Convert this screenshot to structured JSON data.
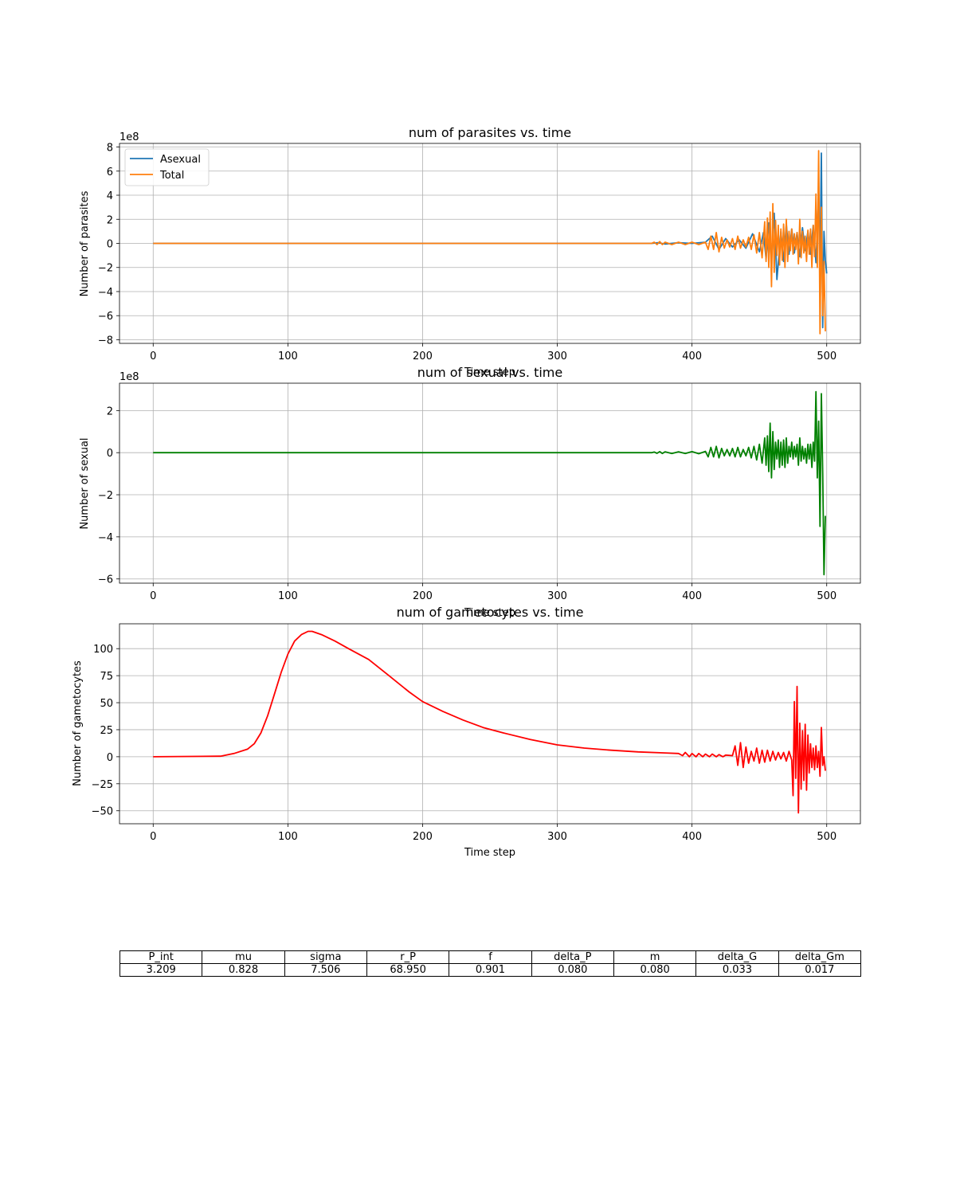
{
  "chart_data": [
    {
      "type": "line",
      "title": "num of parasites vs. time",
      "xlabel": "Time step",
      "ylabel": "Number of parasites",
      "offset_label": "1e8",
      "xlim": [
        -25,
        525
      ],
      "ylim": [
        -8.3,
        8.3
      ],
      "xticks": [
        0,
        100,
        200,
        300,
        400,
        500
      ],
      "yticks": [
        -8,
        -6,
        -4,
        -2,
        0,
        2,
        4,
        6,
        8
      ],
      "grid": true,
      "legend": "upper-left",
      "series": [
        {
          "name": "Asexual",
          "color": "#1f77b4",
          "x": [
            0,
            370,
            375,
            380,
            390,
            400,
            410,
            415,
            420,
            425,
            430,
            435,
            440,
            445,
            450,
            453,
            455,
            457,
            459,
            461,
            463,
            466,
            468,
            470,
            472,
            474,
            476,
            478,
            480,
            482,
            484,
            486,
            488,
            490,
            492,
            494,
            495,
            496,
            497,
            498,
            499,
            500
          ],
          "y": [
            0,
            0,
            0.05,
            -0.05,
            0.05,
            0,
            0.1,
            0.6,
            -0.5,
            0.4,
            -0.3,
            0.3,
            -0.4,
            0.8,
            -0.7,
            0.9,
            -1.3,
            1.7,
            -1.4,
            2.5,
            -3.0,
            1.0,
            -1.5,
            1.6,
            -0.9,
            1.2,
            -0.8,
            0.9,
            -1.1,
            1.3,
            -0.6,
            1.0,
            -0.9,
            1.5,
            -1.6,
            4.0,
            -2.0,
            7.5,
            -7.0,
            1.0,
            -1.4,
            -2.5
          ]
        },
        {
          "name": "Total",
          "color": "#ff7f0e",
          "x": [
            0,
            370,
            372,
            374,
            376,
            378,
            380,
            385,
            390,
            395,
            400,
            405,
            410,
            412,
            414,
            416,
            418,
            420,
            422,
            424,
            426,
            428,
            430,
            432,
            434,
            436,
            438,
            440,
            442,
            444,
            446,
            448,
            450,
            452,
            454,
            455,
            456,
            457,
            458,
            459,
            460,
            461,
            462,
            463,
            464,
            465,
            466,
            467,
            468,
            469,
            470,
            471,
            472,
            473,
            474,
            475,
            476,
            477,
            478,
            479,
            480,
            481,
            482,
            483,
            484,
            485,
            486,
            487,
            488,
            489,
            490,
            491,
            492,
            493,
            494,
            495,
            496,
            497,
            498,
            499
          ],
          "y": [
            0,
            0,
            0.1,
            -0.1,
            0.15,
            -0.1,
            0.1,
            -0.1,
            0.1,
            -0.1,
            0.1,
            -0.1,
            0.1,
            -0.5,
            0.6,
            -0.5,
            0.9,
            -0.7,
            0.5,
            -0.4,
            0.3,
            -0.3,
            0.4,
            -0.5,
            0.6,
            -0.4,
            0.3,
            -0.3,
            0.5,
            -0.5,
            0.7,
            -0.8,
            0.9,
            -1.2,
            1.8,
            -1.5,
            2.1,
            -2.0,
            2.6,
            -3.6,
            3.3,
            -2.4,
            1.9,
            -1.0,
            1.5,
            -1.8,
            1.2,
            -1.4,
            1.6,
            -2.0,
            2.0,
            -1.5,
            1.0,
            -0.6,
            1.2,
            -0.9,
            0.8,
            -0.5,
            0.9,
            -1.7,
            2.0,
            -1.2,
            1.0,
            -0.8,
            0.6,
            -1.5,
            1.1,
            -0.9,
            1.2,
            -2.0,
            1.5,
            -1.1,
            4.1,
            -2.0,
            7.7,
            -7.5,
            3.0,
            -6.0,
            -1.5,
            -7.3
          ]
        }
      ]
    },
    {
      "type": "line",
      "title": "num of sexual vs. time",
      "xlabel": "Time step",
      "ylabel": "Number of sexual",
      "offset_label": "1e8",
      "xlim": [
        -25,
        525
      ],
      "ylim": [
        -6.2,
        3.3
      ],
      "xticks": [
        0,
        100,
        200,
        300,
        400,
        500
      ],
      "yticks": [
        -6,
        -4,
        -2,
        0,
        2
      ],
      "grid": true,
      "series": [
        {
          "name": "",
          "color": "#008000",
          "x": [
            0,
            370,
            372,
            374,
            376,
            378,
            380,
            385,
            390,
            395,
            400,
            405,
            410,
            412,
            414,
            416,
            418,
            420,
            422,
            424,
            426,
            428,
            430,
            432,
            434,
            436,
            438,
            440,
            442,
            444,
            446,
            448,
            450,
            452,
            454,
            455,
            456,
            457,
            458,
            459,
            460,
            461,
            462,
            463,
            464,
            465,
            466,
            467,
            468,
            469,
            470,
            471,
            472,
            473,
            474,
            475,
            476,
            477,
            478,
            479,
            480,
            481,
            482,
            483,
            484,
            485,
            486,
            487,
            488,
            489,
            490,
            491,
            492,
            493,
            494,
            495,
            496,
            497,
            498,
            499
          ],
          "y": [
            0,
            0,
            0.03,
            -0.03,
            0.05,
            -0.04,
            0.04,
            -0.04,
            0.04,
            -0.04,
            0.05,
            -0.05,
            0.06,
            -0.2,
            0.25,
            -0.2,
            0.3,
            -0.25,
            0.2,
            -0.15,
            0.15,
            -0.15,
            0.2,
            -0.2,
            0.25,
            -0.2,
            0.15,
            -0.15,
            0.25,
            -0.25,
            0.3,
            -0.35,
            0.4,
            -0.5,
            0.7,
            -0.6,
            0.8,
            -0.9,
            1.4,
            -1.2,
            1.0,
            -0.8,
            0.5,
            -0.3,
            0.6,
            -0.7,
            0.5,
            -0.6,
            0.6,
            -0.7,
            0.7,
            -0.5,
            0.3,
            -0.2,
            0.5,
            -0.3,
            0.3,
            -0.2,
            0.4,
            -0.6,
            0.7,
            -0.4,
            0.3,
            -0.3,
            0.2,
            -0.5,
            0.4,
            -0.3,
            0.4,
            -0.7,
            0.5,
            -0.4,
            2.9,
            -1.2,
            1.5,
            -3.5,
            2.8,
            -1.0,
            -5.8,
            -3.0
          ]
        }
      ]
    },
    {
      "type": "line",
      "title": "num of gametocytes vs. time",
      "xlabel": "Time step",
      "ylabel": "Number of gametocytes",
      "xlim": [
        -25,
        525
      ],
      "ylim": [
        -62,
        123
      ],
      "xticks": [
        0,
        100,
        200,
        300,
        400,
        500
      ],
      "yticks": [
        -50,
        -25,
        0,
        25,
        50,
        75,
        100
      ],
      "grid": true,
      "series": [
        {
          "name": "",
          "color": "#ff0000",
          "x": [
            0,
            50,
            60,
            70,
            75,
            80,
            85,
            90,
            95,
            100,
            105,
            110,
            115,
            118,
            125,
            135,
            145,
            160,
            175,
            190,
            200,
            215,
            230,
            245,
            260,
            280,
            300,
            320,
            340,
            360,
            380,
            390,
            393,
            395,
            398,
            400,
            403,
            405,
            408,
            410,
            413,
            415,
            418,
            420,
            423,
            425,
            430,
            432,
            434,
            436,
            438,
            440,
            442,
            444,
            446,
            448,
            450,
            452,
            454,
            456,
            458,
            460,
            462,
            464,
            466,
            468,
            470,
            472,
            474,
            475,
            476,
            477,
            478,
            479,
            480,
            481,
            482,
            483,
            484,
            485,
            486,
            487,
            488,
            489,
            490,
            491,
            492,
            493,
            494,
            495,
            496,
            497,
            498,
            499
          ],
          "y": [
            0,
            0.5,
            3,
            7,
            12,
            22,
            38,
            58,
            78,
            95,
            107,
            113,
            116,
            116,
            113,
            107,
            100,
            90,
            75,
            60,
            51,
            42,
            34,
            27,
            22,
            16,
            11,
            8,
            6,
            4.5,
            3.5,
            3,
            1,
            4,
            0,
            3,
            0,
            3,
            0,
            2.5,
            0,
            2.5,
            0,
            2,
            0,
            1.5,
            1,
            10,
            -8,
            13,
            -10,
            9,
            -6,
            5,
            -4,
            8,
            -6,
            6,
            -5,
            6,
            -4,
            5,
            -3,
            4,
            -2,
            4,
            -4,
            5,
            -3,
            -36,
            51,
            -20,
            65,
            -52,
            31,
            -30,
            24,
            -22,
            30,
            -31,
            20,
            -15,
            12,
            -10,
            8,
            -12,
            10,
            -10,
            5,
            -18,
            27,
            -8,
            0,
            -13
          ]
        }
      ]
    }
  ],
  "table": {
    "headers": [
      "P_int",
      "mu",
      "sigma",
      "r_P",
      "f",
      "delta_P",
      "m",
      "delta_G",
      "delta_Gm"
    ],
    "values": [
      "3.209",
      "0.828",
      "7.506",
      "68.950",
      "0.901",
      "0.080",
      "0.080",
      "0.033",
      "0.017"
    ]
  }
}
